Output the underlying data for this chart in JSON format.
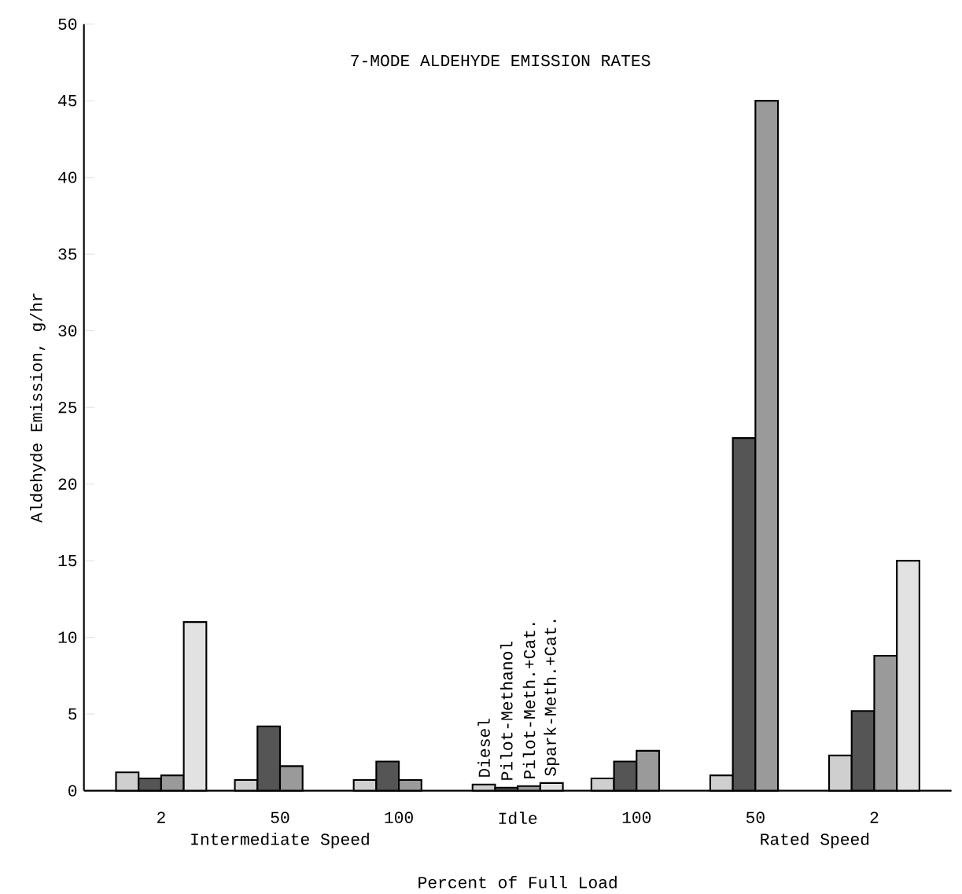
{
  "chart_data": {
    "type": "bar",
    "title": "7-MODE ALDEHYDE EMISSION RATES",
    "xlabel": "Percent of Full Load",
    "ylabel": "Aldehyde Emission, g/hr",
    "categories": [
      "2",
      "50",
      "100",
      "Idle",
      "100",
      "50",
      "2"
    ],
    "series": [
      {
        "name": "Diesel",
        "color": "#cfcfcf",
        "values": [
          1.2,
          0.7,
          0.7,
          0.4,
          0.8,
          1.0,
          2.3
        ]
      },
      {
        "name": "Pilot-Methanol",
        "color": "#555555",
        "values": [
          0.8,
          4.2,
          1.9,
          0.2,
          1.9,
          23.0,
          5.2
        ]
      },
      {
        "name": "Pilot-Meth.+Cat.",
        "color": "#9a9a9a",
        "values": [
          1.0,
          1.6,
          0.7,
          0.3,
          2.6,
          45.0,
          8.8
        ]
      },
      {
        "name": "Spark-Meth.+Cat.",
        "color": "#e2e2e2",
        "values": [
          11.0,
          null,
          null,
          0.5,
          null,
          null,
          15.0
        ]
      }
    ],
    "annotations": [
      "Intermediate Speed",
      "Rated Speed"
    ],
    "ylim": [
      0,
      50
    ],
    "yticks": [
      0,
      5,
      10,
      15,
      20,
      25,
      30,
      35,
      40,
      45,
      50
    ]
  }
}
